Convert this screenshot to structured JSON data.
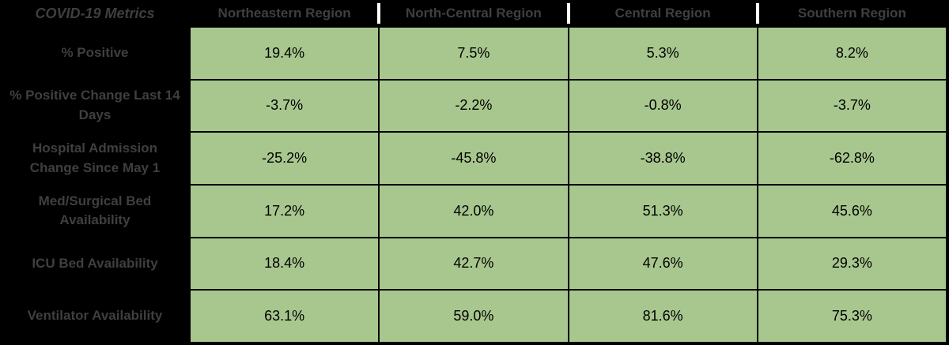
{
  "colors": {
    "background": "#000000",
    "data_cell_fill": "#a8c78e",
    "data_cell_text": "#000000",
    "header_and_label_text": "#3f3f3f",
    "header_divider": "#ffffff"
  },
  "chart_data": {
    "type": "table",
    "title": "COVID-19 Metrics",
    "columns": [
      "Northeastern Region",
      "North-Central Region",
      "Central Region",
      "Southern Region"
    ],
    "rows": [
      {
        "label": "% Positive",
        "values": [
          "19.4%",
          "7.5%",
          "5.3%",
          "8.2%"
        ]
      },
      {
        "label": "% Positive Change Last 14 Days",
        "values": [
          "-3.7%",
          "-2.2%",
          "-0.8%",
          "-3.7%"
        ]
      },
      {
        "label": "Hospital Admission Change Since May 1",
        "values": [
          "-25.2%",
          "-45.8%",
          "-38.8%",
          "-62.8%"
        ]
      },
      {
        "label": "Med/Surgical Bed Availability",
        "values": [
          "17.2%",
          "42.0%",
          "51.3%",
          "45.6%"
        ]
      },
      {
        "label": "ICU Bed Availability",
        "values": [
          "18.4%",
          "42.7%",
          "47.6%",
          "29.3%"
        ]
      },
      {
        "label": "Ventilator Availability",
        "values": [
          "63.1%",
          "59.0%",
          "81.6%",
          "75.3%"
        ]
      }
    ]
  }
}
